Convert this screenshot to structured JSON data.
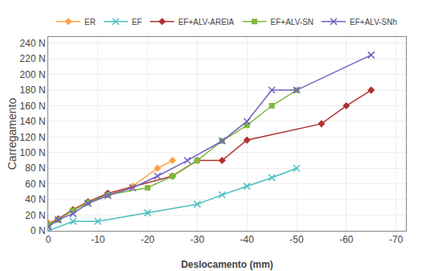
{
  "chart_data": {
    "type": "line",
    "xlabel": "Deslocamento (mm)",
    "ylabel": "Carregamento",
    "xlim": [
      0,
      -72
    ],
    "ylim": [
      0,
      248
    ],
    "xticks": [
      0,
      -10,
      -20,
      -30,
      -40,
      -50,
      -60,
      -70
    ],
    "yticks": [
      {
        "value": 0,
        "label": "0 N"
      },
      {
        "value": 20,
        "label": "20 N"
      },
      {
        "value": 40,
        "label": "40 N"
      },
      {
        "value": 60,
        "label": "60 N"
      },
      {
        "value": 80,
        "label": "80 N"
      },
      {
        "value": 100,
        "label": "100 N"
      },
      {
        "value": 120,
        "label": "120 N"
      },
      {
        "value": 140,
        "label": "140 N"
      },
      {
        "value": 160,
        "label": "160 N"
      },
      {
        "value": 180,
        "label": "180 N"
      },
      {
        "value": 200,
        "label": "200 N"
      },
      {
        "value": 220,
        "label": "220 N"
      },
      {
        "value": 240,
        "label": "240 N"
      }
    ],
    "grid": true,
    "legend": "top",
    "series": [
      {
        "name": "ER",
        "color": "#FFA040",
        "marker": "diamond",
        "x": [
          0,
          -2,
          -5,
          -8,
          -12,
          -17,
          -22,
          -25
        ],
        "values": [
          10,
          15,
          27,
          37,
          46,
          57,
          80,
          90
        ]
      },
      {
        "name": "EF",
        "color": "#4BBFBF",
        "marker": "x",
        "x": [
          0,
          -5,
          -10,
          -20,
          -30,
          -35,
          -40,
          -45,
          -50
        ],
        "values": [
          0,
          12,
          12,
          23,
          34,
          46,
          57,
          68,
          80
        ]
      },
      {
        "name": "EF+ALV-AREIA",
        "color": "#B03030",
        "marker": "diamond",
        "x": [
          0,
          -2,
          -5,
          -8,
          -12,
          -25,
          -30,
          -35,
          -40,
          -55,
          -60,
          -65
        ],
        "values": [
          8,
          15,
          27,
          37,
          48,
          70,
          90,
          90,
          116,
          137,
          160,
          180
        ]
      },
      {
        "name": "EF+ALV-SN",
        "color": "#80B840",
        "marker": "square",
        "x": [
          0,
          -2,
          -5,
          -8,
          -12,
          -20,
          -25,
          -30,
          -35,
          -40,
          -45,
          -50
        ],
        "values": [
          8,
          14,
          26,
          36,
          46,
          55,
          70,
          90,
          115,
          135,
          160,
          180
        ]
      },
      {
        "name": "EF+ALV-SNh",
        "color": "#7060C0",
        "marker": "x",
        "x": [
          0,
          -2,
          -5,
          -8,
          -12,
          -17,
          -22,
          -28,
          -35,
          -40,
          -45,
          -50,
          -65
        ],
        "values": [
          5,
          14,
          22,
          35,
          45,
          55,
          70,
          90,
          115,
          140,
          180,
          180,
          225
        ]
      }
    ]
  }
}
